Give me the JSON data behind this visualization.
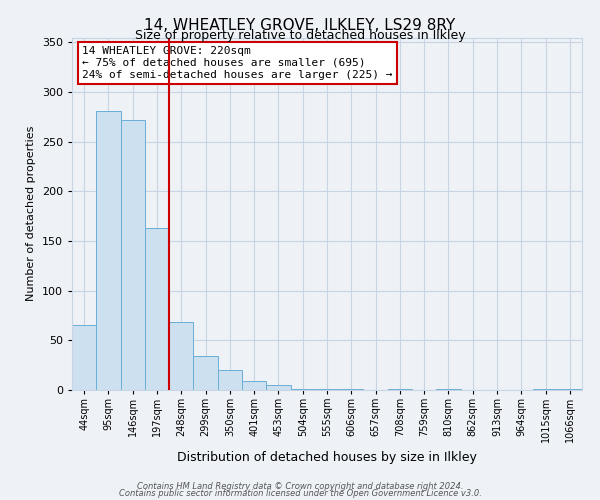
{
  "title": "14, WHEATLEY GROVE, ILKLEY, LS29 8RY",
  "subtitle": "Size of property relative to detached houses in Ilkley",
  "xlabel": "Distribution of detached houses by size in Ilkley",
  "ylabel": "Number of detached properties",
  "bar_labels": [
    "44sqm",
    "95sqm",
    "146sqm",
    "197sqm",
    "248sqm",
    "299sqm",
    "350sqm",
    "401sqm",
    "453sqm",
    "504sqm",
    "555sqm",
    "606sqm",
    "657sqm",
    "708sqm",
    "759sqm",
    "810sqm",
    "862sqm",
    "913sqm",
    "964sqm",
    "1015sqm",
    "1066sqm"
  ],
  "bar_values": [
    65,
    281,
    272,
    163,
    68,
    34,
    20,
    9,
    5,
    1,
    1,
    1,
    0,
    1,
    0,
    1,
    0,
    0,
    0,
    1,
    1
  ],
  "bar_color": "#cce0f0",
  "bar_edge_color": "#6aaed6",
  "vline_color": "#cc0000",
  "vline_x_index": 3.5,
  "ylim": [
    0,
    355
  ],
  "yticks": [
    0,
    50,
    100,
    150,
    200,
    250,
    300,
    350
  ],
  "annotation_text": "14 WHEATLEY GROVE: 220sqm\n← 75% of detached houses are smaller (695)\n24% of semi-detached houses are larger (225) →",
  "annotation_box_color": "white",
  "annotation_box_edge_color": "#cc0000",
  "footer_line1": "Contains HM Land Registry data © Crown copyright and database right 2024.",
  "footer_line2": "Contains public sector information licensed under the Open Government Licence v3.0.",
  "background_color": "#eef2f7",
  "grid_color": "#c8d4e4",
  "title_fontsize": 11,
  "subtitle_fontsize": 9,
  "xlabel_fontsize": 9,
  "ylabel_fontsize": 8,
  "tick_fontsize": 7,
  "annot_fontsize": 8,
  "footer_fontsize": 6
}
